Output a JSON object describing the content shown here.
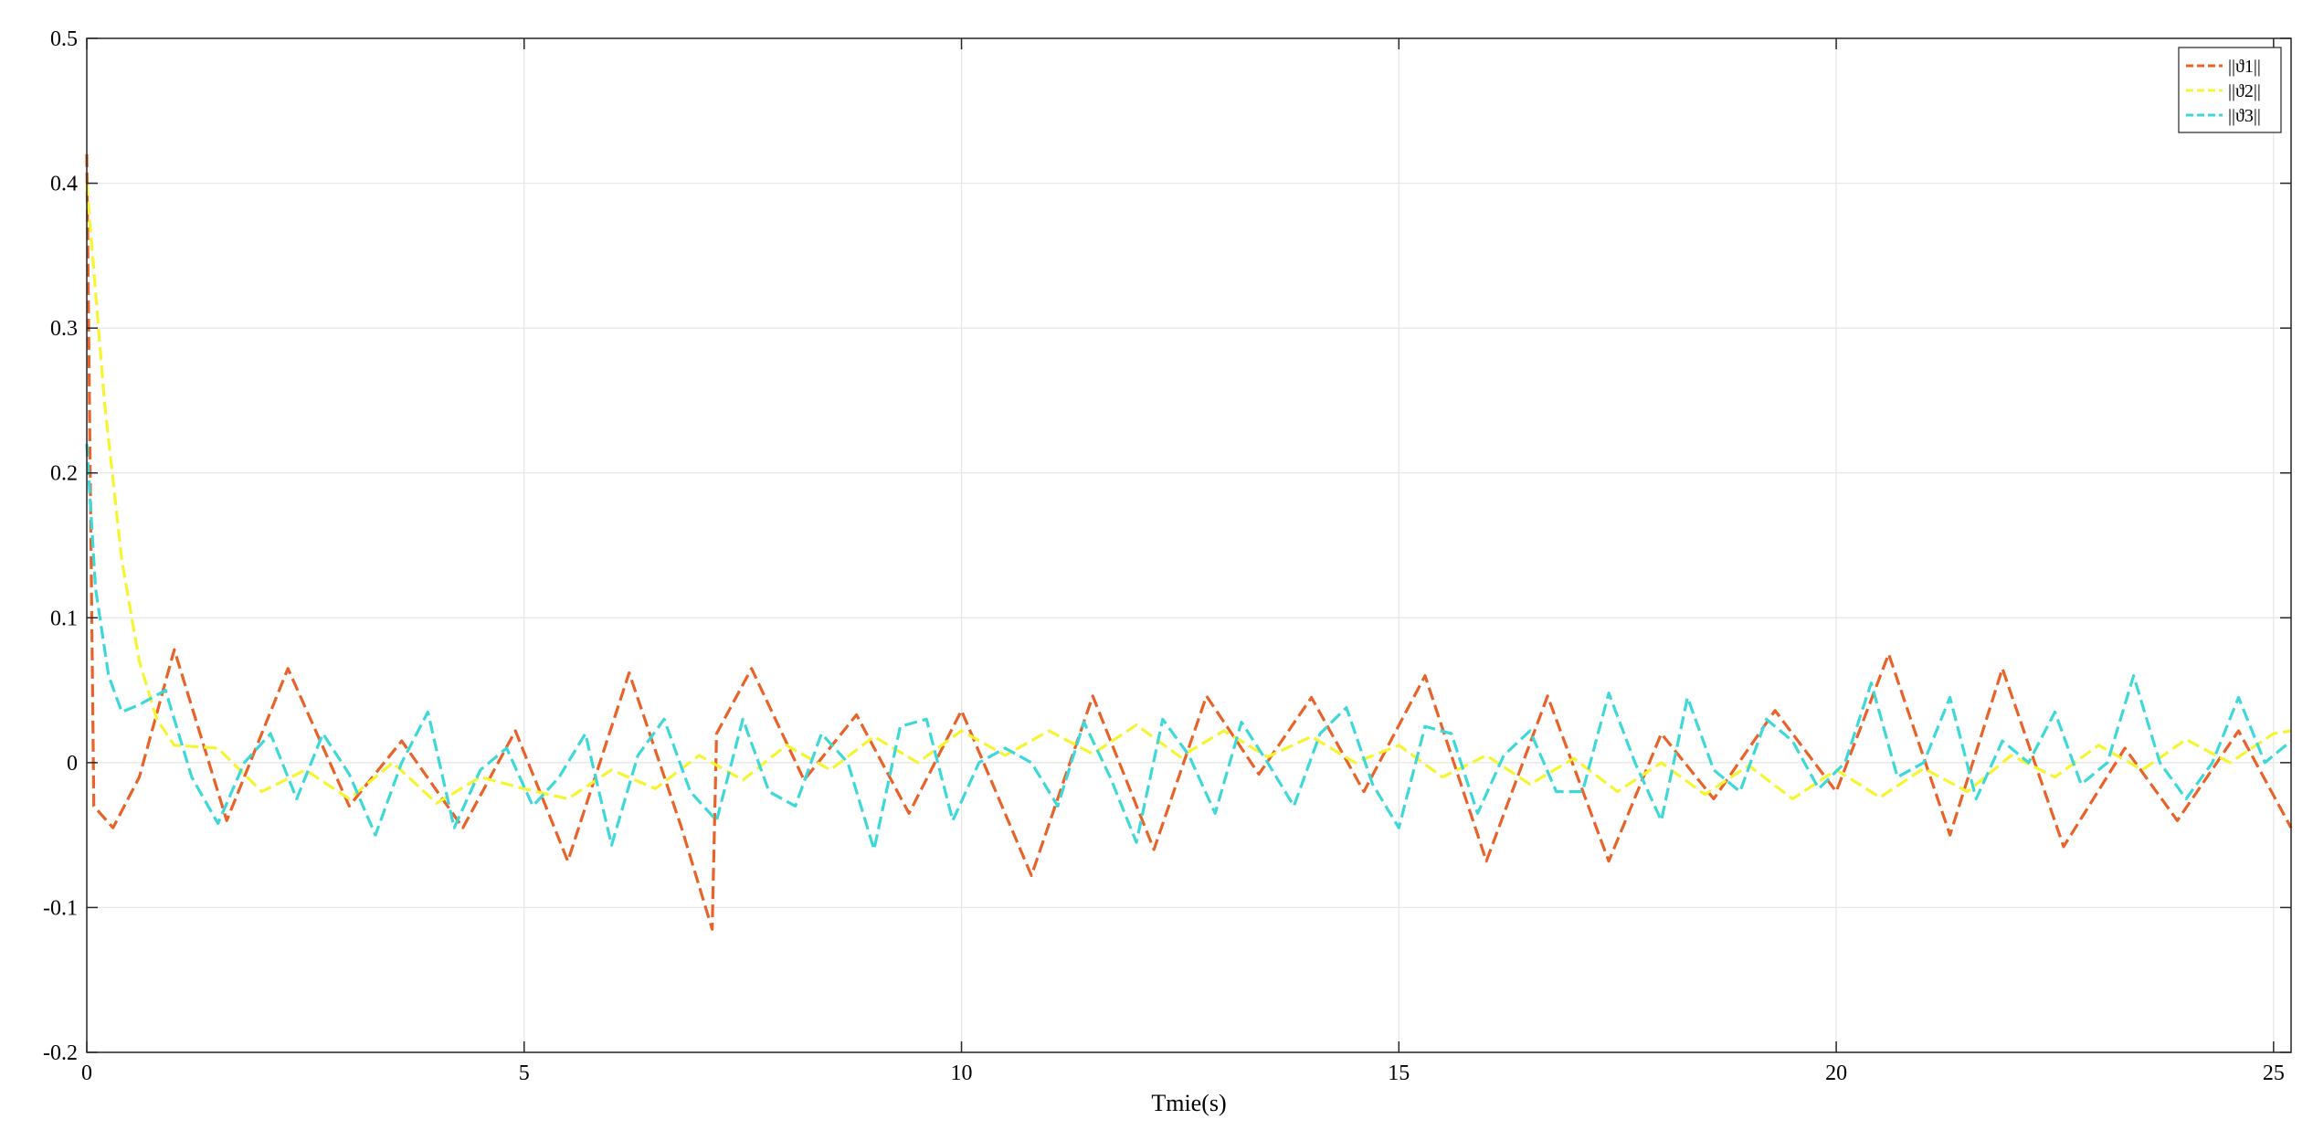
{
  "chart_data": {
    "type": "line",
    "title": "",
    "xlabel": "Tmie(s)",
    "ylabel": "",
    "xlim": [
      0,
      25.2
    ],
    "ylim": [
      -0.2,
      0.5
    ],
    "xticks": [
      0,
      5,
      10,
      15,
      20,
      25
    ],
    "yticks": [
      -0.2,
      -0.1,
      0,
      0.1,
      0.2,
      0.3,
      0.4,
      0.5
    ],
    "xtick_labels": [
      "0",
      "5",
      "10",
      "15",
      "20",
      "25"
    ],
    "ytick_labels": [
      "-0.2",
      "-0.1",
      "0",
      "0.1",
      "0.2",
      "0.3",
      "0.4",
      "0.5"
    ],
    "grid": true,
    "legend_position": "top-right",
    "series": [
      {
        "name": "||ϑ1||",
        "color": "#E8622A",
        "style": "dashed",
        "x": [
          0,
          0.08,
          0.3,
          0.6,
          1.0,
          1.6,
          2.3,
          3.0,
          3.6,
          4.3,
          4.9,
          5.5,
          6.2,
          6.8,
          7.15,
          7.2,
          7.6,
          8.2,
          8.8,
          9.4,
          10.0,
          10.8,
          11.5,
          12.2,
          12.8,
          13.4,
          14.0,
          14.6,
          15.3,
          16.0,
          16.7,
          17.4,
          18.0,
          18.6,
          19.3,
          20.0,
          20.6,
          21.3,
          21.9,
          22.6,
          23.3,
          23.9,
          24.6,
          25.2
        ],
        "y": [
          0.42,
          -0.03,
          -0.045,
          -0.01,
          0.078,
          -0.04,
          0.065,
          -0.03,
          0.015,
          -0.045,
          0.022,
          -0.068,
          0.062,
          -0.045,
          -0.115,
          0.02,
          0.065,
          -0.012,
          0.033,
          -0.035,
          0.036,
          -0.078,
          0.046,
          -0.06,
          0.046,
          -0.008,
          0.045,
          -0.02,
          0.06,
          -0.068,
          0.046,
          -0.068,
          0.02,
          -0.025,
          0.036,
          -0.02,
          0.075,
          -0.05,
          0.065,
          -0.058,
          0.01,
          -0.04,
          0.022,
          -0.045
        ]
      },
      {
        "name": "||ϑ2||",
        "color": "#F5F532",
        "style": "dashed",
        "x": [
          0,
          0.2,
          0.4,
          0.6,
          0.8,
          1.0,
          1.5,
          2.0,
          2.5,
          3.0,
          3.5,
          4.0,
          4.5,
          5.0,
          5.5,
          6.0,
          6.5,
          7.0,
          7.5,
          8.0,
          8.5,
          9.0,
          9.5,
          10.0,
          10.5,
          11.0,
          11.5,
          12.0,
          12.5,
          13.0,
          13.5,
          14.0,
          14.5,
          15.0,
          15.5,
          16.0,
          16.5,
          17.0,
          17.5,
          18.0,
          18.5,
          19.0,
          19.5,
          20.0,
          20.5,
          21.0,
          21.5,
          22.0,
          22.5,
          23.0,
          23.5,
          24.0,
          24.5,
          25.0,
          25.2
        ],
        "y": [
          0.4,
          0.25,
          0.14,
          0.07,
          0.03,
          0.012,
          0.01,
          -0.02,
          -0.005,
          -0.025,
          0.0,
          -0.028,
          -0.01,
          -0.018,
          -0.025,
          -0.005,
          -0.018,
          0.005,
          -0.012,
          0.012,
          -0.005,
          0.018,
          0.0,
          0.022,
          0.005,
          0.022,
          0.006,
          0.026,
          0.004,
          0.022,
          0.004,
          0.018,
          0.0,
          0.012,
          -0.01,
          0.005,
          -0.015,
          0.003,
          -0.02,
          0.0,
          -0.022,
          -0.002,
          -0.025,
          -0.005,
          -0.024,
          -0.004,
          -0.02,
          0.005,
          -0.01,
          0.012,
          -0.005,
          0.016,
          0.0,
          0.02,
          0.022
        ]
      },
      {
        "name": "||ϑ3||",
        "color": "#3FD8D8",
        "style": "dashed",
        "x": [
          0,
          0.1,
          0.25,
          0.4,
          0.6,
          0.9,
          1.2,
          1.5,
          1.8,
          2.1,
          2.4,
          2.7,
          3.0,
          3.3,
          3.6,
          3.9,
          4.2,
          4.5,
          4.8,
          5.1,
          5.4,
          5.7,
          6.0,
          6.3,
          6.6,
          6.9,
          7.2,
          7.5,
          7.8,
          8.1,
          8.4,
          8.7,
          9.0,
          9.3,
          9.6,
          9.9,
          10.2,
          10.5,
          10.8,
          11.1,
          11.4,
          11.7,
          12.0,
          12.3,
          12.6,
          12.9,
          13.2,
          13.5,
          13.8,
          14.1,
          14.4,
          14.7,
          15.0,
          15.3,
          15.6,
          15.9,
          16.2,
          16.5,
          16.8,
          17.1,
          17.4,
          17.7,
          18.0,
          18.3,
          18.6,
          18.9,
          19.2,
          19.5,
          19.8,
          20.1,
          20.4,
          20.7,
          21.0,
          21.3,
          21.6,
          21.9,
          22.2,
          22.5,
          22.8,
          23.1,
          23.4,
          23.7,
          24.0,
          24.3,
          24.6,
          24.9,
          25.2
        ],
        "y": [
          0.22,
          0.12,
          0.06,
          0.035,
          0.04,
          0.05,
          -0.01,
          -0.042,
          0.0,
          0.02,
          -0.025,
          0.02,
          -0.008,
          -0.05,
          0.0,
          0.035,
          -0.045,
          -0.005,
          0.01,
          -0.03,
          -0.01,
          0.02,
          -0.057,
          0.005,
          0.03,
          -0.02,
          -0.04,
          0.03,
          -0.02,
          -0.03,
          0.02,
          0.0,
          -0.06,
          0.025,
          0.03,
          -0.04,
          0.0,
          0.01,
          0.0,
          -0.03,
          0.028,
          -0.01,
          -0.055,
          0.03,
          0.005,
          -0.035,
          0.028,
          0.0,
          -0.03,
          0.02,
          0.038,
          -0.015,
          -0.045,
          0.025,
          0.02,
          -0.035,
          0.005,
          0.022,
          -0.02,
          -0.02,
          0.048,
          0.0,
          -0.04,
          0.045,
          -0.005,
          -0.02,
          0.03,
          0.015,
          -0.018,
          0.0,
          0.055,
          -0.01,
          0.0,
          0.045,
          -0.025,
          0.015,
          0.0,
          0.035,
          -0.015,
          0.0,
          0.06,
          0.0,
          -0.025,
          0.0,
          0.045,
          0.0,
          0.015
        ]
      }
    ]
  }
}
